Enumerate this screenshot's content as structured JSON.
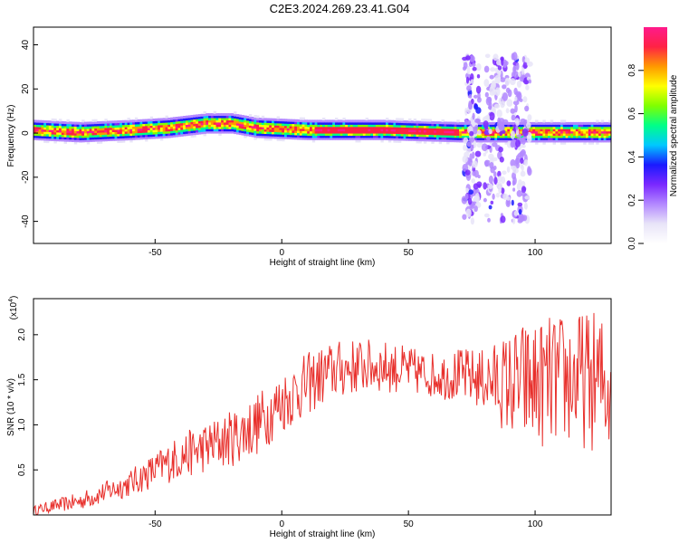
{
  "title": "C2E3.2024.269.23.41.G04",
  "colors": {
    "snr_line": "#e8302c",
    "colormap": [
      "#ffffff",
      "#e8e4f8",
      "#b388ff",
      "#7a28ff",
      "#1a1aff",
      "#00c8ff",
      "#00ff88",
      "#80ff00",
      "#ffff00",
      "#ff9900",
      "#ff2244",
      "#ff1a8c"
    ]
  },
  "chart_data": [
    {
      "type": "heatmap",
      "name": "spectrogram",
      "xlabel": "Height of straight line (km)",
      "ylabel": "Frequency (Hz)",
      "xlim": [
        -98,
        130
      ],
      "ylim": [
        -50,
        48
      ],
      "xticks": [
        -50,
        0,
        50,
        100
      ],
      "yticks": [
        -40,
        -20,
        0,
        20,
        40
      ],
      "colorbar": {
        "label": "Normalized spectral amplitude",
        "range": [
          0,
          1
        ],
        "ticks": [
          "0.0",
          "0.2",
          "0.4",
          "0.6",
          "0.8"
        ]
      },
      "ridge_center_hz": [
        [
          -98,
          1
        ],
        [
          -80,
          0
        ],
        [
          -60,
          1
        ],
        [
          -45,
          2
        ],
        [
          -30,
          4
        ],
        [
          -20,
          4
        ],
        [
          -10,
          2
        ],
        [
          10,
          1
        ],
        [
          40,
          1
        ],
        [
          70,
          0
        ],
        [
          130,
          0
        ]
      ],
      "noise_band_km": [
        [
          72,
          78
        ],
        [
          80,
          90
        ],
        [
          91,
          98
        ]
      ],
      "noise_band_hz": [
        -40,
        35
      ]
    },
    {
      "type": "line",
      "name": "snr",
      "xlabel": "Height of straight line (km)",
      "ylabel": "SNR (10 * v/v)",
      "scale_label": "(x10",
      "scale_exp": "4",
      "scale_suffix": ")",
      "xlim": [
        -98,
        130
      ],
      "ylim": [
        0,
        2.4
      ],
      "xticks": [
        -50,
        0,
        50,
        100
      ],
      "yticks": [
        "0.5",
        "1.0",
        "1.5",
        "2.0"
      ],
      "trend": [
        [
          -98,
          0.05
        ],
        [
          -90,
          0.1
        ],
        [
          -80,
          0.15
        ],
        [
          -70,
          0.25
        ],
        [
          -60,
          0.35
        ],
        [
          -50,
          0.5
        ],
        [
          -40,
          0.65
        ],
        [
          -30,
          0.75
        ],
        [
          -20,
          0.85
        ],
        [
          -10,
          1.0
        ],
        [
          0,
          1.25
        ],
        [
          10,
          1.45
        ],
        [
          20,
          1.6
        ],
        [
          30,
          1.65
        ],
        [
          40,
          1.65
        ],
        [
          50,
          1.6
        ],
        [
          60,
          1.55
        ],
        [
          70,
          1.55
        ],
        [
          80,
          1.5
        ],
        [
          90,
          1.45
        ],
        [
          100,
          1.45
        ],
        [
          110,
          1.5
        ],
        [
          120,
          1.5
        ],
        [
          130,
          1.45
        ]
      ],
      "amplitude": [
        [
          -98,
          0.05
        ],
        [
          -60,
          0.15
        ],
        [
          -40,
          0.25
        ],
        [
          -10,
          0.35
        ],
        [
          10,
          0.35
        ],
        [
          60,
          0.25
        ],
        [
          80,
          0.35
        ],
        [
          95,
          0.7
        ],
        [
          130,
          0.8
        ]
      ]
    }
  ]
}
